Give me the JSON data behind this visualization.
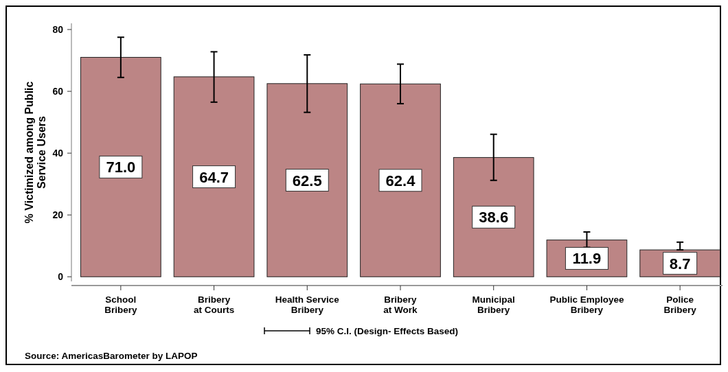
{
  "chart_data": {
    "type": "bar",
    "ylabel": "% Victimized among Public Service Users",
    "categories": [
      "School Bribery",
      "Bribery at Courts",
      "Health Service Bribery",
      "Bribery at Work",
      "Municipal Bribery",
      "Public Employee Bribery",
      "Police Bribery"
    ],
    "values": [
      71.0,
      64.7,
      62.5,
      62.4,
      38.6,
      11.9,
      8.7
    ],
    "errors": [
      [
        64.5,
        77.5
      ],
      [
        56.5,
        72.8
      ],
      [
        53.2,
        71.8
      ],
      [
        56.0,
        68.8
      ],
      [
        31.2,
        46.1
      ],
      [
        9.5,
        14.5
      ],
      [
        8.7,
        11.2
      ]
    ],
    "value_labels": [
      "71.0",
      "64.7",
      "62.5",
      "62.4",
      "38.6",
      "11.9",
      "8.7"
    ],
    "color": "#bc8585",
    "ylim": [
      -1.5,
      82
    ],
    "yticks": [
      0,
      20,
      40,
      60,
      80
    ],
    "grid": false,
    "annotations": [
      "95% C.I. (Design- Effects Based)",
      "Source: AmericasBarometer by LAPOP"
    ]
  }
}
